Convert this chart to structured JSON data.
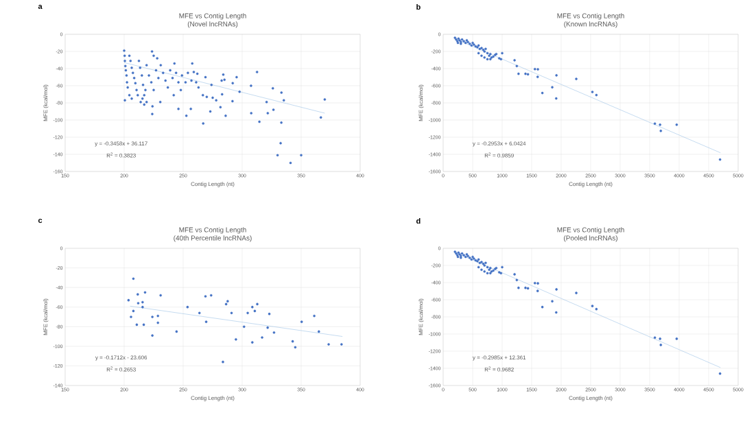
{
  "chart_data": [
    {
      "type": "scatter",
      "title": "MFE vs Contig Length",
      "subtitle": "(Novel lncRNAs)",
      "xlabel": "Contig Length (nt)",
      "ylabel": "MFE (kcal/mol)",
      "annotations": [
        "a",
        "y = -0.3458x + 36.117",
        "R$^{2}$ = 0.3823"
      ],
      "xlim": [
        150,
        400
      ],
      "xticks": [
        150,
        200,
        250,
        300,
        350,
        400
      ],
      "ylim": [
        -160,
        0
      ],
      "yticks": [
        -160,
        -140,
        -120,
        -100,
        -80,
        -60,
        -40,
        -20,
        0
      ],
      "grid": true,
      "series": [
        {
          "color": "#4472c4",
          "marker": "circle",
          "x": [
            200,
            200.6,
            206.4,
            223.6,
            228,
            223.8,
            230.6,
            224,
            217,
            246,
            242.6,
            257.7,
            252.7,
            256.5,
            267,
            268.9,
            273,
            274,
            281.6,
            284,
            286,
            292,
            295.3,
            291.8,
            297.8,
            307.5,
            307.7,
            312.6,
            314.6,
            320.7,
            321.7,
            326,
            326.5,
            333.2,
            333.3,
            335.3,
            332.6,
            330,
            341,
            350,
            366.7,
            370,
            266.7,
            270,
            275,
            278,
            283,
            282.6,
            285,
            200.4,
            200.6,
            201,
            201.4,
            202,
            202.4,
            203,
            204.4,
            205.4,
            206.4,
            207.4,
            208.5,
            209.5,
            210.5,
            211.5,
            212.5,
            213.5,
            215,
            216,
            217,
            219,
            221,
            223,
            225,
            227,
            229,
            231,
            233,
            235,
            237,
            239,
            241,
            242,
            244,
            246,
            248,
            249,
            252,
            254,
            257,
            259,
            261,
            263,
            262,
            215.5,
            214,
            219,
            218,
            225,
            204.4
          ],
          "values": [
            -19,
            -77,
            -75,
            -20,
            -28,
            -93,
            -79,
            -84,
            -82,
            -87,
            -34,
            -34,
            -95,
            -87,
            -104,
            -50,
            -90,
            -59,
            -85,
            -47,
            -95,
            -57,
            -50,
            -78,
            -67,
            -60,
            -92,
            -44,
            -102,
            -79,
            -92,
            -63,
            -88,
            -103,
            -68,
            -77,
            -127,
            -141,
            -150,
            -141,
            -97,
            -76,
            -71,
            -73,
            -74,
            -77,
            -70,
            -54,
            -53,
            -25,
            -31,
            -37,
            -42,
            -48,
            -56,
            -62,
            -25,
            -31,
            -39,
            -45,
            -51,
            -57,
            -65,
            -71,
            -31,
            -39,
            -48,
            -59,
            -71,
            -36,
            -48,
            -56,
            -65,
            -42,
            -51,
            -36,
            -45,
            -54,
            -62,
            -42,
            -51,
            -71,
            -45,
            -56,
            -65,
            -48,
            -56,
            -45,
            -54,
            -44,
            -56,
            -62,
            -46,
            -75,
            -79,
            -79,
            -65,
            -25,
            -71
          ]
        },
        {
          "type": "line",
          "color": "#9dc3e6",
          "line_style": "solid",
          "marker": "none",
          "x": [
            200,
            370
          ],
          "values": [
            -33,
            -92
          ]
        }
      ]
    },
    {
      "type": "scatter",
      "title": "MFE vs Contig Length",
      "subtitle": "(Known lncRNAs)",
      "xlabel": "Contig Length (nt)",
      "ylabel": "MFE (kcal/mol)",
      "annotations": [
        "b",
        "y = -0.2953x + 6.0424",
        "R$^{2}$ = 0.9859"
      ],
      "xlim": [
        0,
        5000
      ],
      "xticks": [
        0,
        500,
        1000,
        1500,
        2000,
        2500,
        3000,
        3500,
        4000,
        4500,
        5000
      ],
      "ylim": [
        -1600,
        0
      ],
      "yticks": [
        -1600,
        -1400,
        -1200,
        -1000,
        -800,
        -600,
        -400,
        -200,
        0
      ],
      "grid": true,
      "series": [
        {
          "color": "#4472c4",
          "marker": "circle",
          "x": [
            200,
            220,
            240,
            260,
            280,
            300,
            320,
            350,
            380,
            400,
            420,
            450,
            480,
            500,
            520,
            550,
            580,
            600,
            620,
            650,
            680,
            700,
            720,
            750,
            780,
            800,
            820,
            850,
            880,
            900,
            950,
            980,
            1000,
            600,
            650,
            700,
            750,
            800,
            250,
            300,
            1210,
            1248,
            1277,
            1395,
            1437,
            1555,
            1605,
            1601,
            1681,
            1849,
            1920,
            1916,
            2256,
            2529,
            2597,
            3588,
            3676,
            3689,
            3958,
            4693
          ],
          "values": [
            -40,
            -60,
            -80,
            -50,
            -70,
            -90,
            -60,
            -80,
            -100,
            -70,
            -90,
            -110,
            -130,
            -100,
            -120,
            -140,
            -150,
            -130,
            -170,
            -160,
            -180,
            -200,
            -170,
            -220,
            -250,
            -230,
            -270,
            -260,
            -240,
            -230,
            -280,
            -290,
            -220,
            -220,
            -250,
            -270,
            -290,
            -290,
            -100,
            -110,
            -303,
            -370,
            -461,
            -461,
            -467,
            -406,
            -409,
            -497,
            -685,
            -618,
            -479,
            -748,
            -521,
            -673,
            -709,
            -1042,
            -1055,
            -1127,
            -1055,
            -1461
          ]
        },
        {
          "type": "line",
          "color": "#9dc3e6",
          "line_style": "solid",
          "marker": "none",
          "x": [
            200,
            4700
          ],
          "values": [
            -53,
            -1382
          ]
        }
      ]
    },
    {
      "type": "scatter",
      "title": "MFE vs Contig Length",
      "subtitle": "(40th Percentile lncRNAs)",
      "xlabel": "Contig Length (nt)",
      "ylabel": "MFE (kcal/mol)",
      "annotations": [
        "c",
        "y = -0.1712x - 23.606",
        "R$^{2}$ = 0.2653"
      ],
      "xlim": [
        150,
        400
      ],
      "xticks": [
        150,
        200,
        250,
        300,
        350,
        400
      ],
      "ylim": [
        -140,
        0
      ],
      "yticks": [
        -140,
        -120,
        -100,
        -80,
        -60,
        -40,
        -20,
        0
      ],
      "grid": true,
      "series": [
        {
          "color": "#4472c4",
          "marker": "circle",
          "x": [
            203.7,
            207.8,
            205.8,
            207.8,
            211.5,
            211.9,
            210.7,
            215.6,
            215.6,
            216.6,
            217.7,
            223.9,
            223.9,
            228.6,
            228.6,
            230.9,
            244.4,
            253.7,
            263.8,
            268.9,
            269.5,
            273.7,
            283.7,
            286.4,
            287.7,
            291,
            294.7,
            301.6,
            304.7,
            308.6,
            308.6,
            310.7,
            312.8,
            316.9,
            321.6,
            323,
            327,
            342.8,
            345,
            350.4,
            361.1,
            365,
            373.3,
            384.2
          ],
          "values": [
            -53,
            -31,
            -70,
            -64,
            -47,
            -56,
            -78,
            -55,
            -60,
            -78,
            -45,
            -70,
            -89,
            -69,
            -76,
            -48,
            -85,
            -60,
            -66,
            -49,
            -75,
            -48,
            -116,
            -57,
            -54,
            -66,
            -93,
            -80,
            -66,
            -60,
            -96,
            -64,
            -57,
            -91,
            -81,
            -67,
            -86,
            -95,
            -101,
            -75,
            -69,
            -85,
            -98,
            -98
          ]
        },
        {
          "type": "line",
          "color": "#9dc3e6",
          "line_style": "solid",
          "marker": "none",
          "x": [
            205,
            385
          ],
          "values": [
            -59,
            -90
          ]
        }
      ]
    },
    {
      "type": "scatter",
      "title": "MFE vs Contig Length",
      "subtitle": "(Pooled lncRNAs)",
      "xlabel": "Contig Length (nt)",
      "ylabel": "MFE (kcal/mol)",
      "annotations": [
        "d",
        "y = -0.2985x + 12.361",
        "R$^{2}$ = 0.9682"
      ],
      "xlim": [
        0,
        5000
      ],
      "xticks": [
        0,
        500,
        1000,
        1500,
        2000,
        2500,
        3000,
        3500,
        4000,
        4500,
        5000
      ],
      "ylim": [
        -1600,
        0
      ],
      "yticks": [
        -1600,
        -1400,
        -1200,
        -1000,
        -800,
        -600,
        -400,
        -200,
        0
      ],
      "grid": true,
      "series": [
        {
          "color": "#4472c4",
          "marker": "circle",
          "x": [
            200,
            220,
            240,
            260,
            280,
            300,
            320,
            350,
            380,
            400,
            420,
            450,
            480,
            500,
            520,
            550,
            580,
            600,
            620,
            650,
            680,
            700,
            720,
            750,
            780,
            800,
            820,
            850,
            880,
            900,
            950,
            980,
            1000,
            600,
            650,
            700,
            750,
            800,
            250,
            300,
            1210,
            1248,
            1277,
            1395,
            1437,
            1555,
            1605,
            1601,
            1681,
            1849,
            1920,
            1916,
            2256,
            2529,
            2597,
            3588,
            3676,
            3689,
            3958,
            4693
          ],
          "values": [
            -40,
            -60,
            -80,
            -50,
            -70,
            -90,
            -60,
            -80,
            -100,
            -70,
            -90,
            -110,
            -130,
            -100,
            -120,
            -140,
            -150,
            -130,
            -170,
            -160,
            -180,
            -200,
            -170,
            -220,
            -250,
            -230,
            -270,
            -260,
            -240,
            -230,
            -280,
            -290,
            -220,
            -220,
            -250,
            -270,
            -290,
            -290,
            -100,
            -110,
            -303,
            -370,
            -461,
            -461,
            -467,
            -406,
            -409,
            -497,
            -685,
            -618,
            -479,
            -748,
            -521,
            -673,
            -709,
            -1042,
            -1055,
            -1127,
            -1055,
            -1461
          ]
        },
        {
          "type": "line",
          "color": "#9dc3e6",
          "line_style": "solid",
          "marker": "none",
          "x": [
            200,
            4700
          ],
          "values": [
            -47,
            -1391
          ]
        }
      ]
    }
  ]
}
